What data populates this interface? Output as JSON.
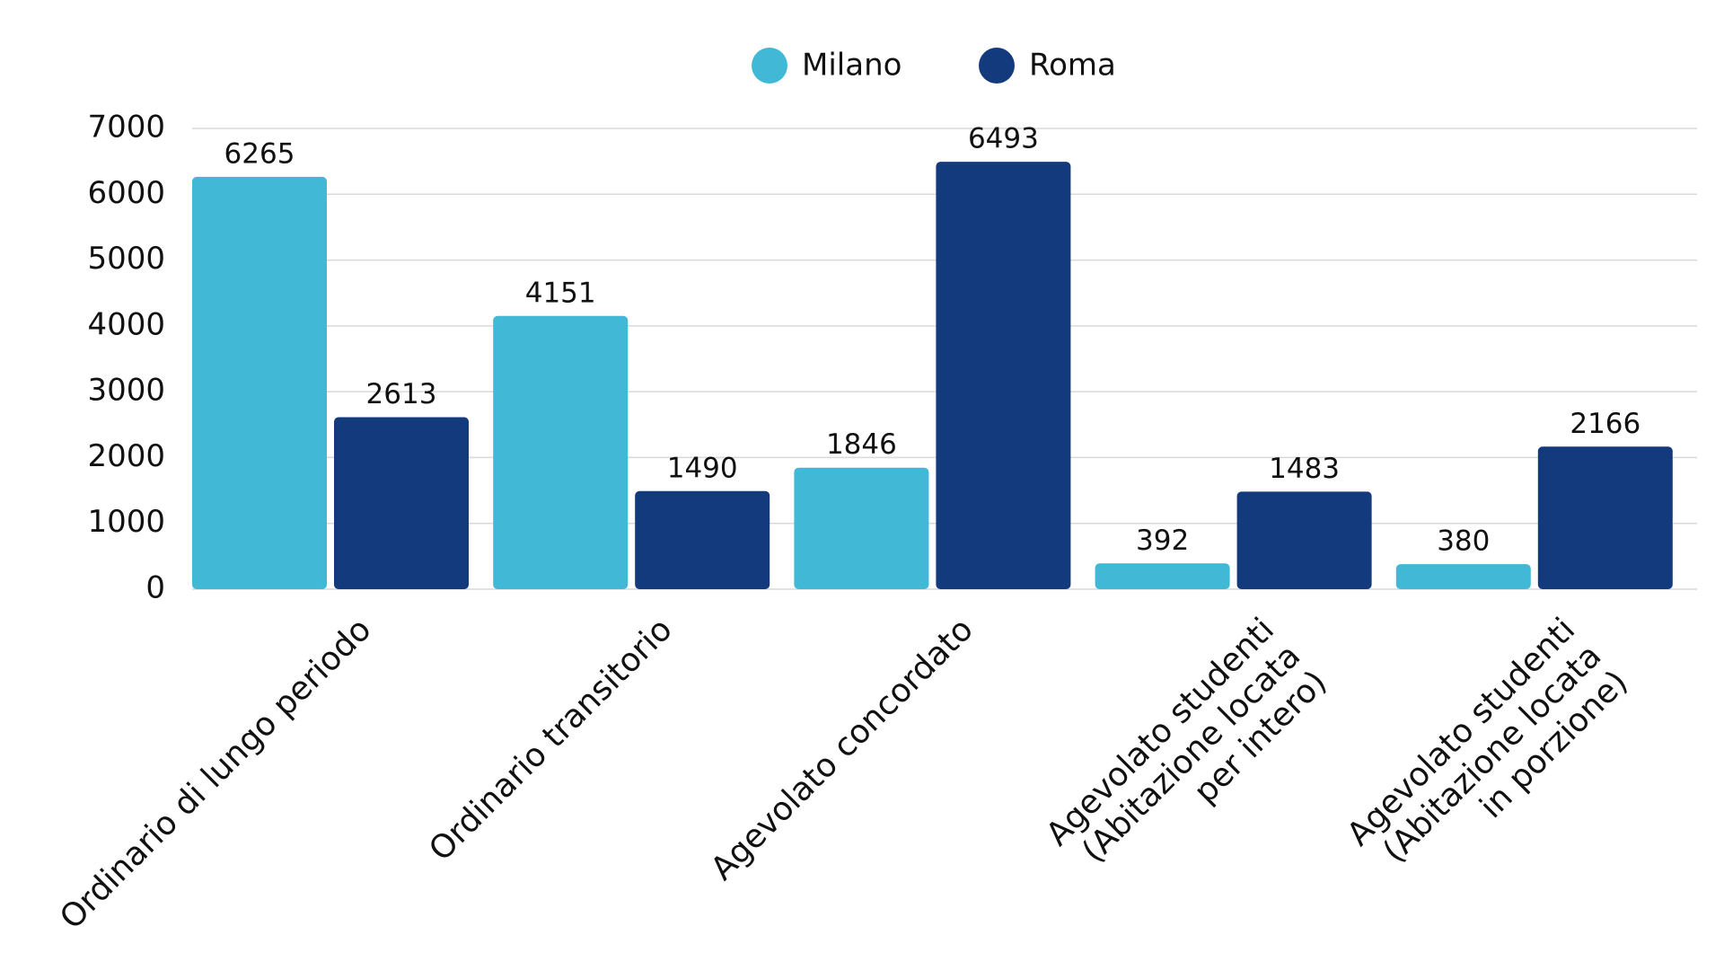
{
  "chart_data": {
    "type": "bar",
    "categories": [
      "Ordinario di lungo periodo",
      "Ordinario transitorio",
      "Agevolato concordato",
      "Agevolato studenti\n(Abitazione locata\nper intero)",
      "Agevolato studenti\n(Abitazione locata\nin porzione)"
    ],
    "series": [
      {
        "name": "Milano",
        "color": "#42b8d7",
        "values": [
          6265,
          4151,
          1846,
          392,
          380
        ]
      },
      {
        "name": "Roma",
        "color": "#143a7e",
        "values": [
          2613,
          1490,
          6493,
          1483,
          2166
        ]
      }
    ],
    "ylim": [
      0,
      7000
    ],
    "yticks": [
      0,
      1000,
      2000,
      3000,
      4000,
      5000,
      6000,
      7000
    ],
    "grid": true,
    "legend": "top"
  }
}
